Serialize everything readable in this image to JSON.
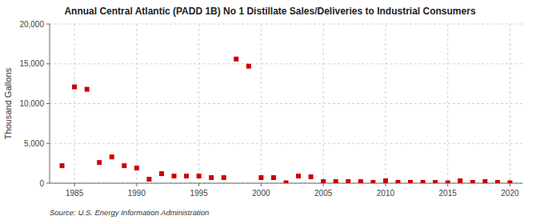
{
  "chart_data": {
    "type": "scatter",
    "title": "Annual Central Atlantic (PADD 1B) No 1 Distillate Sales/Deliveries to Industrial Consumers",
    "y_label": "Thousand Gallons",
    "source": "Source: U.S. Energy Information Administration",
    "x": [
      1984,
      1985,
      1986,
      1987,
      1988,
      1989,
      1990,
      1991,
      1992,
      1993,
      1994,
      1995,
      1996,
      1997,
      1998,
      1999,
      2000,
      2001,
      2002,
      2003,
      2004,
      2005,
      2006,
      2007,
      2008,
      2009,
      2010,
      2011,
      2012,
      2013,
      2014,
      2015,
      2016,
      2017,
      2018,
      2019,
      2020
    ],
    "values": [
      2200,
      12100,
      11800,
      2600,
      3300,
      2200,
      1900,
      500,
      1200,
      900,
      900,
      900,
      700,
      700,
      15600,
      14700,
      700,
      700,
      50,
      900,
      800,
      200,
      200,
      200,
      200,
      100,
      300,
      100,
      100,
      100,
      100,
      50,
      300,
      100,
      200,
      100,
      50
    ],
    "color": "#cc0000",
    "marker": "square",
    "xlim": [
      1983,
      2021
    ],
    "ylim": [
      0,
      20000
    ],
    "xticks": [
      1985,
      1990,
      1995,
      2000,
      2005,
      2010,
      2015,
      2020
    ],
    "yticks": [
      0,
      {
        "value": 5000,
        "label": "5,000"
      },
      {
        "value": 10000,
        "label": "10,000"
      },
      {
        "value": 15000,
        "label": "15,000"
      },
      {
        "value": 20000,
        "label": "20,000"
      }
    ],
    "grid": true
  }
}
